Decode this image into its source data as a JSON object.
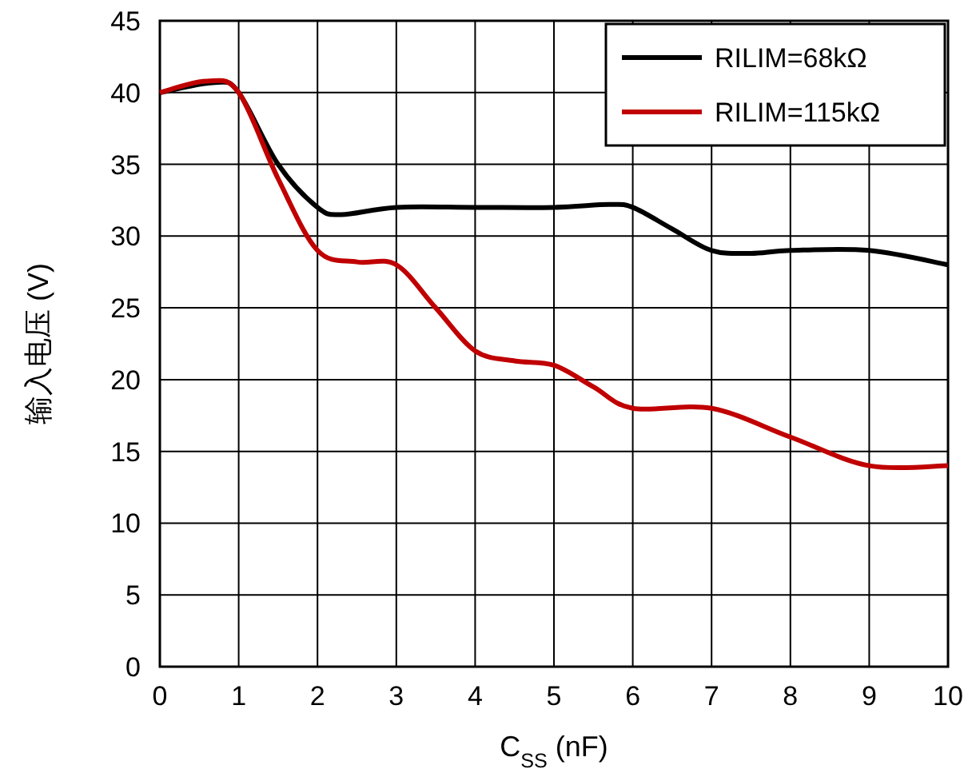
{
  "chart_data": {
    "type": "line",
    "xlabel": "C$_{SS}$ (nF)",
    "ylabel": "输入电压 (V)",
    "xlim": [
      0,
      10
    ],
    "xticks": [
      0,
      1,
      2,
      3,
      4,
      5,
      6,
      7,
      8,
      9,
      10
    ],
    "ylim": [
      0,
      45
    ],
    "yticks": [
      0,
      5,
      10,
      15,
      20,
      25,
      30,
      35,
      40,
      45
    ],
    "grid": true,
    "legend": "top right",
    "line_style": "solid",
    "marker": "none",
    "series": [
      {
        "name": "RILIM=68kΩ",
        "color": "#000000",
        "x": [
          0,
          0.7,
          1,
          1.5,
          2,
          2.3,
          3,
          4,
          5,
          5.7,
          6,
          6.5,
          7,
          7.5,
          8,
          9,
          10
        ],
        "values": [
          40,
          40.7,
          40,
          35,
          32,
          31.5,
          32,
          32,
          32,
          32.2,
          32,
          30.5,
          29,
          28.8,
          29,
          29,
          28
        ]
      },
      {
        "name": "RILIM=115kΩ",
        "color": "#c00000",
        "x": [
          0,
          0.6,
          1,
          1.5,
          2,
          2.5,
          3,
          3.5,
          4,
          4.5,
          5,
          5.5,
          6,
          7,
          8,
          9,
          10
        ],
        "values": [
          40,
          40.8,
          40,
          34,
          29,
          28.2,
          28,
          25,
          22,
          21.3,
          21,
          19.5,
          18,
          18,
          16,
          14,
          14
        ]
      }
    ]
  }
}
